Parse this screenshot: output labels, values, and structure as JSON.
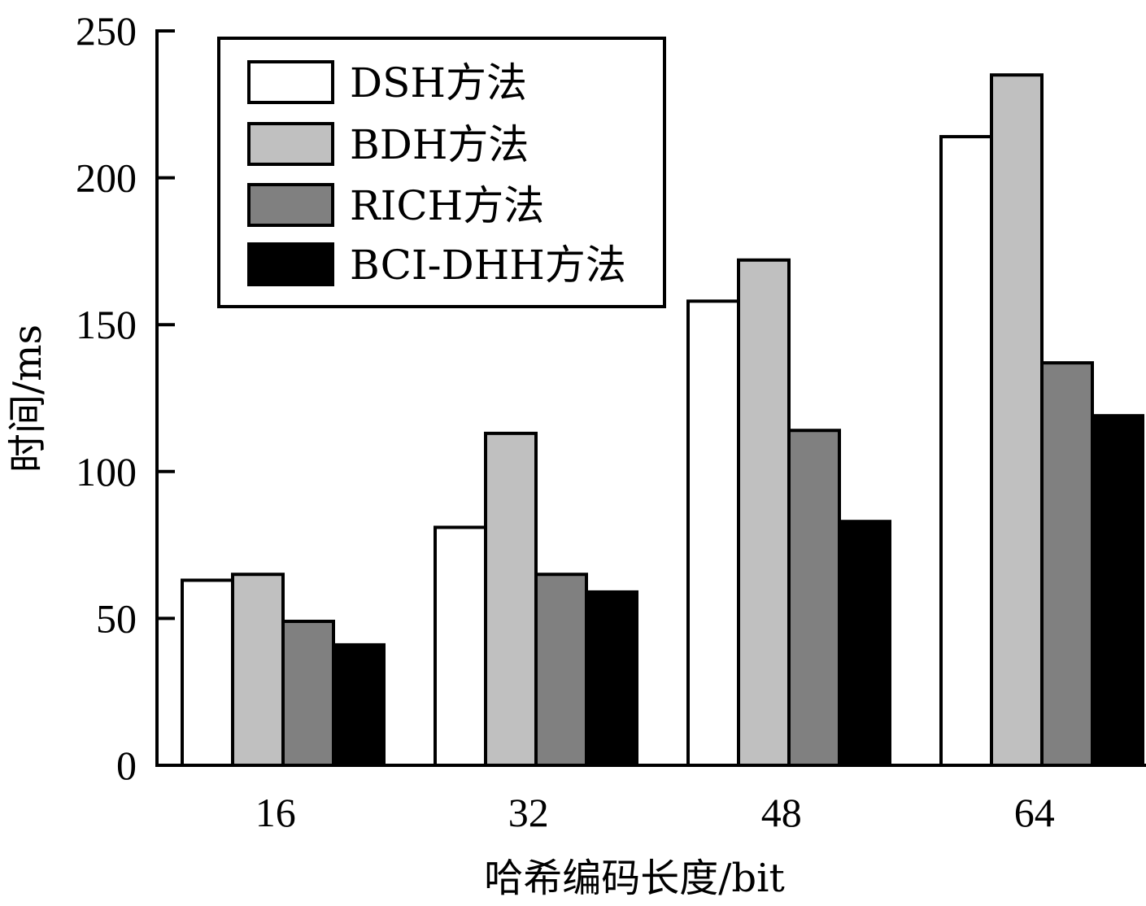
{
  "chart_data": {
    "type": "bar",
    "categories": [
      "16",
      "32",
      "48",
      "64"
    ],
    "series": [
      {
        "name": "DSH方法",
        "color": "#ffffff",
        "values": [
          63,
          81,
          158,
          214
        ]
      },
      {
        "name": "BDH方法",
        "color": "#c0c0c0",
        "values": [
          65,
          113,
          172,
          235
        ]
      },
      {
        "name": "RICH方法",
        "color": "#808080",
        "values": [
          49,
          65,
          114,
          137
        ]
      },
      {
        "name": "BCI-DHH方法",
        "color": "#000000",
        "values": [
          41,
          59,
          83,
          119
        ]
      }
    ],
    "xlabel": "哈希编码长度/bit",
    "ylabel": "时间/ms",
    "ylim": [
      0,
      250
    ],
    "yticks": [
      0,
      50,
      100,
      150,
      200,
      250
    ],
    "legend_position": "top-left",
    "grid": false
  }
}
